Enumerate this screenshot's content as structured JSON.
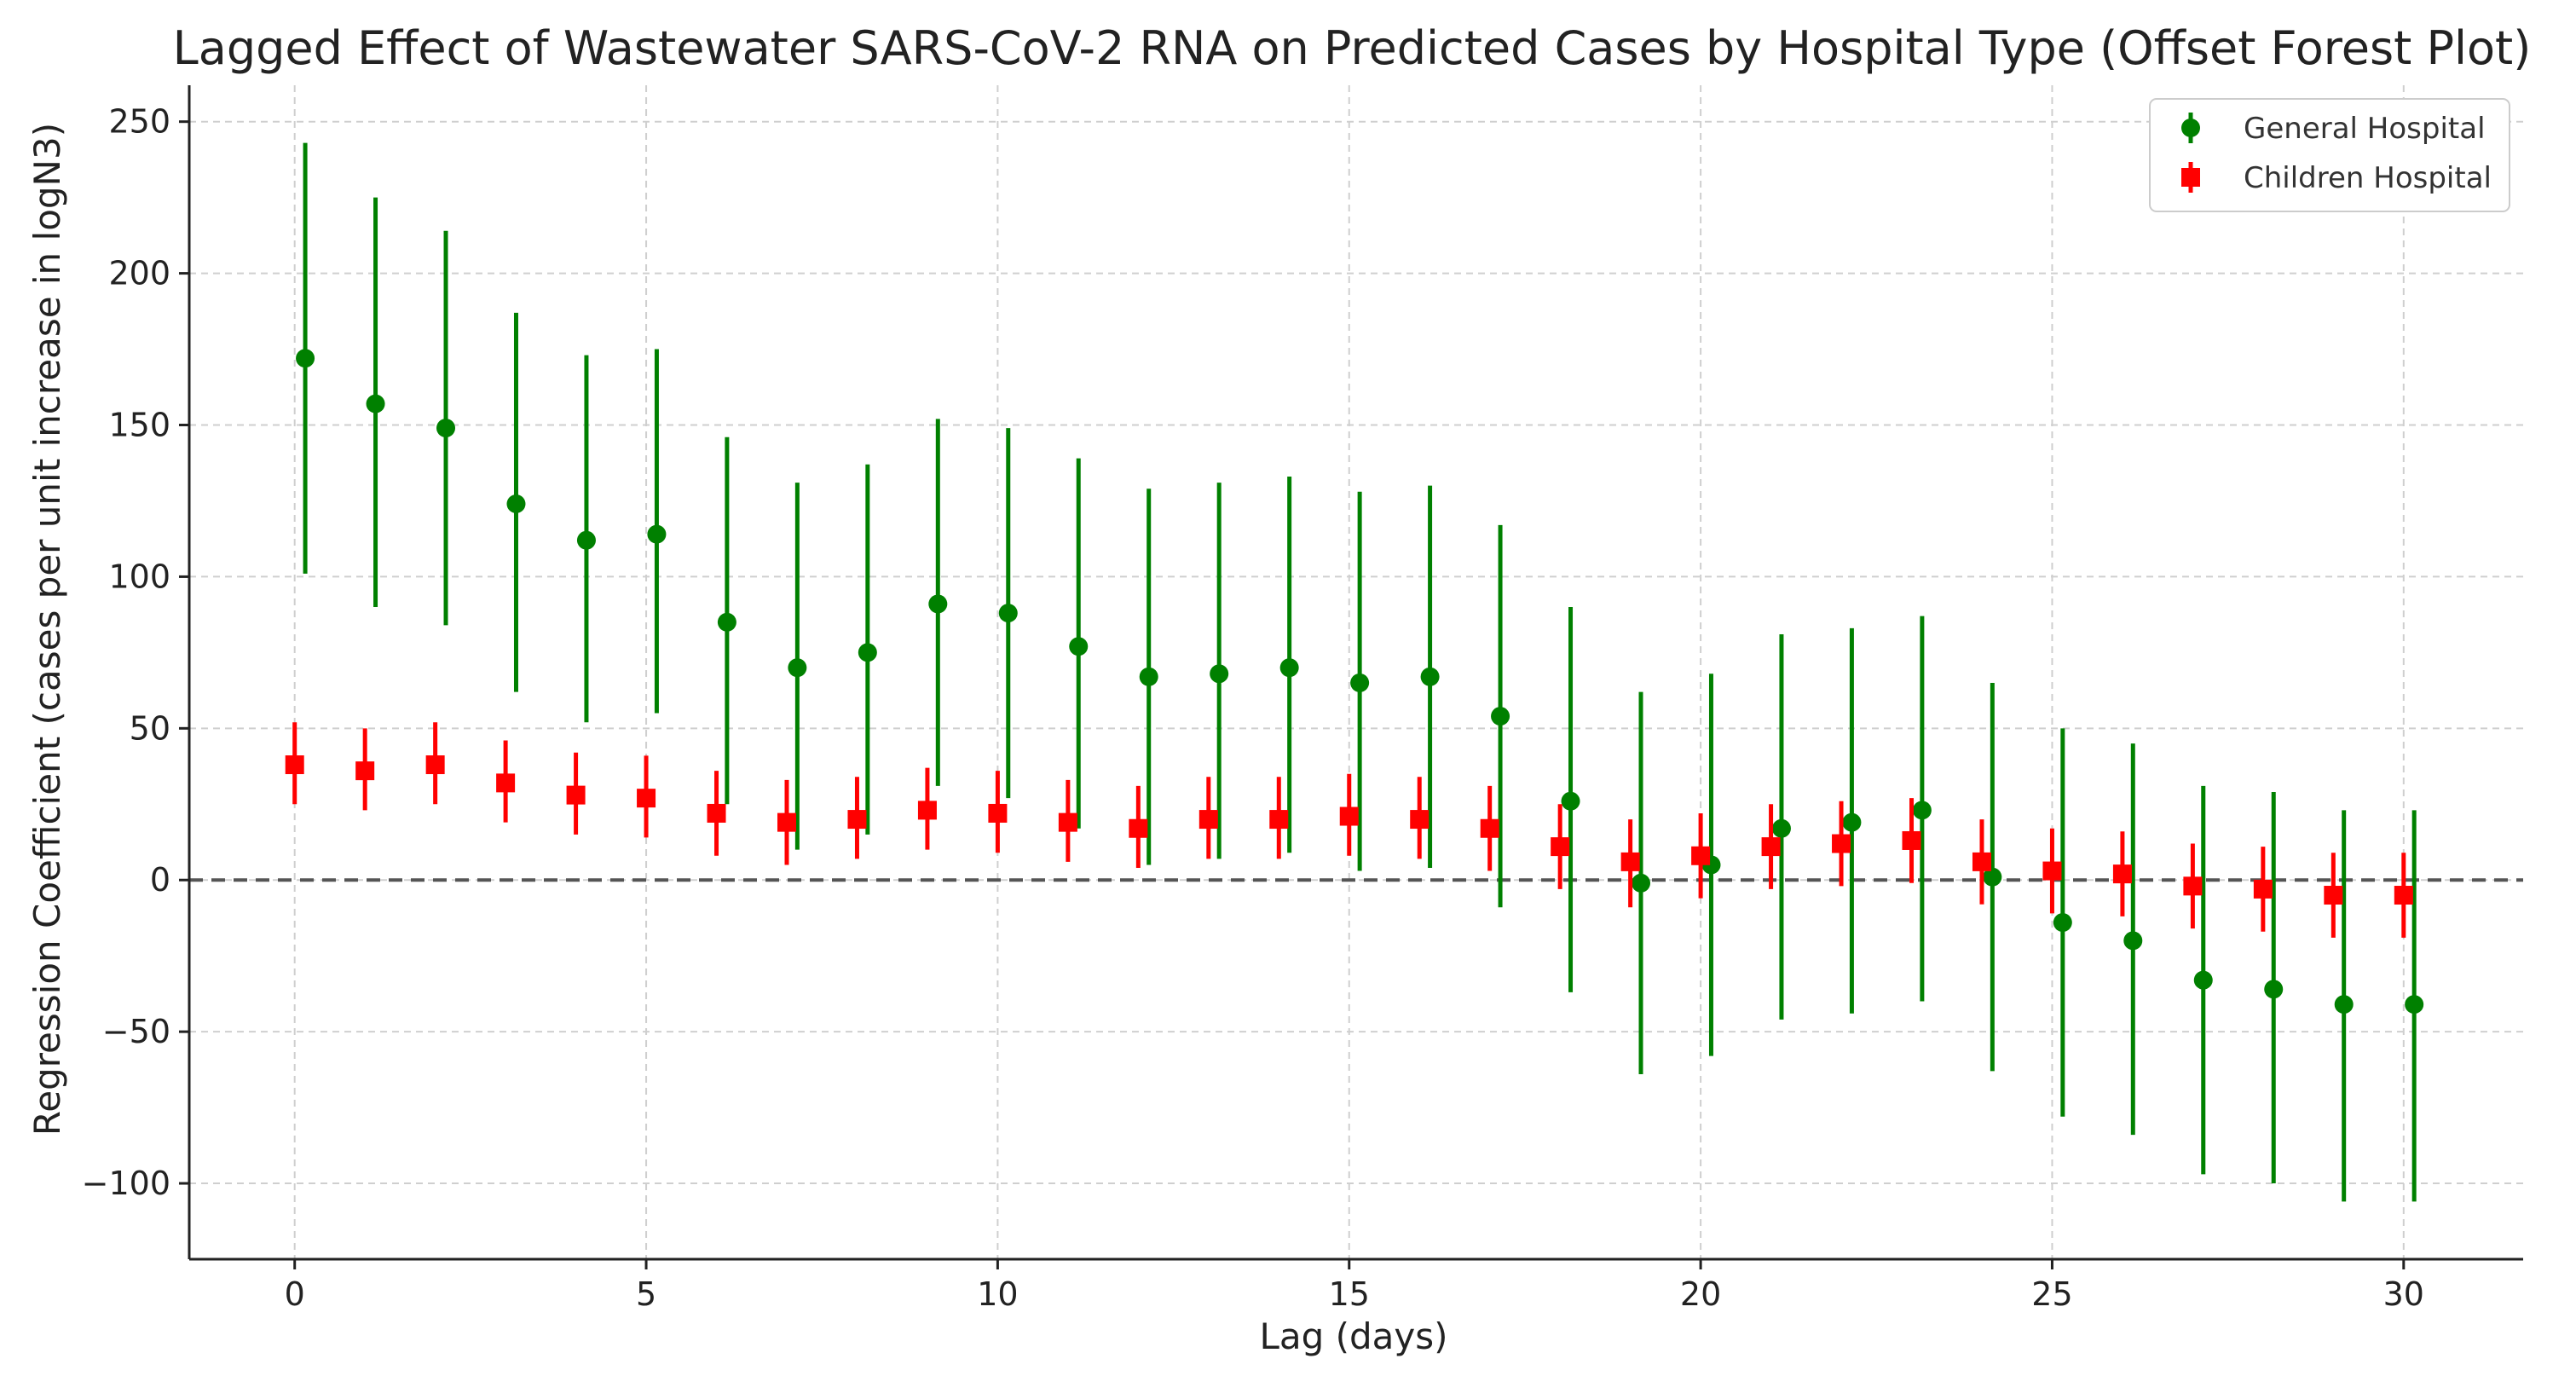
{
  "chart_data": {
    "type": "forest",
    "title": "Lagged Effect of Wastewater SARS-CoV-2 RNA on Predicted Cases by Hospital Type (Offset Forest Plot)",
    "xlabel": "Lag (days)",
    "ylabel": "Regression Coefficient (cases per unit increase in logN3)",
    "xlim": [
      -1.5,
      31.7
    ],
    "ylim": [
      -125,
      262
    ],
    "xticks": [
      0,
      5,
      10,
      15,
      20,
      25,
      30
    ],
    "yticks": [
      -100,
      -50,
      0,
      50,
      100,
      150,
      200,
      250
    ],
    "ytick_labels": [
      "−100",
      "−50",
      "0",
      "50",
      "100",
      "150",
      "200",
      "250"
    ],
    "reference_line": 0,
    "grid": true,
    "legend_position": "top-right",
    "series": [
      {
        "name": "General Hospital",
        "color": "#008000",
        "marker": "circle",
        "offset": 0.15,
        "lags": [
          0,
          1,
          2,
          3,
          4,
          5,
          6,
          7,
          8,
          9,
          10,
          11,
          12,
          13,
          14,
          15,
          16,
          17,
          18,
          19,
          20,
          21,
          22,
          23,
          24,
          25,
          26,
          27,
          28,
          29,
          30
        ],
        "estimate": [
          172,
          157,
          149,
          124,
          112,
          114,
          85,
          70,
          75,
          91,
          88,
          77,
          67,
          68,
          70,
          65,
          67,
          54,
          26,
          -1,
          5,
          17,
          19,
          23,
          1,
          -14,
          -20,
          -33,
          -36,
          -41,
          -41
        ],
        "lower": [
          101,
          90,
          84,
          62,
          52,
          55,
          25,
          10,
          15,
          31,
          27,
          17,
          5,
          7,
          9,
          3,
          4,
          -9,
          -37,
          -64,
          -58,
          -46,
          -44,
          -40,
          -63,
          -78,
          -84,
          -97,
          -100,
          -106,
          -106
        ],
        "upper": [
          243,
          225,
          214,
          187,
          173,
          175,
          146,
          131,
          137,
          152,
          149,
          139,
          129,
          131,
          133,
          128,
          130,
          117,
          90,
          62,
          68,
          81,
          83,
          87,
          65,
          50,
          45,
          31,
          29,
          23,
          23
        ]
      },
      {
        "name": "Children Hospital",
        "color": "#ff0000",
        "marker": "square",
        "offset": 0.0,
        "lags": [
          0,
          1,
          2,
          3,
          4,
          5,
          6,
          7,
          8,
          9,
          10,
          11,
          12,
          13,
          14,
          15,
          16,
          17,
          18,
          19,
          20,
          21,
          22,
          23,
          24,
          25,
          26,
          27,
          28,
          29,
          30
        ],
        "estimate": [
          38,
          36,
          38,
          32,
          28,
          27,
          22,
          19,
          20,
          23,
          22,
          19,
          17,
          20,
          20,
          21,
          20,
          17,
          11,
          6,
          8,
          11,
          12,
          13,
          6,
          3,
          2,
          -2,
          -3,
          -5,
          -5
        ],
        "lower": [
          25,
          23,
          25,
          19,
          15,
          14,
          8,
          5,
          7,
          10,
          9,
          6,
          4,
          7,
          7,
          8,
          7,
          3,
          -3,
          -9,
          -6,
          -3,
          -2,
          -1,
          -8,
          -11,
          -12,
          -16,
          -17,
          -19,
          -19
        ],
        "upper": [
          52,
          50,
          52,
          46,
          42,
          41,
          36,
          33,
          34,
          37,
          36,
          33,
          31,
          34,
          34,
          35,
          34,
          31,
          25,
          20,
          22,
          25,
          26,
          27,
          20,
          17,
          16,
          12,
          11,
          9,
          9
        ]
      }
    ]
  }
}
